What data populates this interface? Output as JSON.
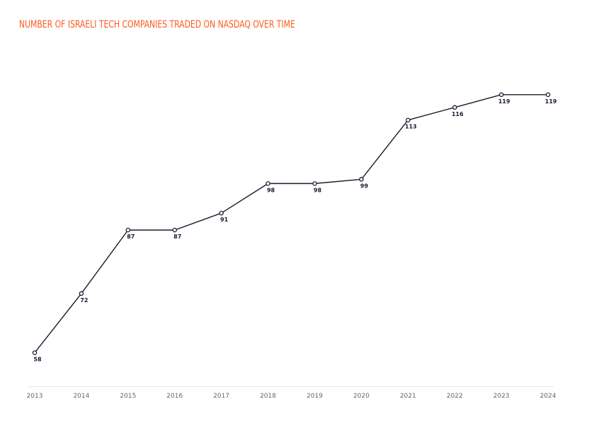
{
  "title": "NUMBER OF ISRAELI TECH COMPANIES TRADED ON NASDAQ OVER TIME",
  "colors": {
    "title": "#ff5a1f",
    "line": "#1a1a2e",
    "marker_fill": "#ffffff",
    "axis": "#e6e6e6",
    "tick_text": "#666666"
  },
  "chart_data": {
    "type": "line",
    "title": "NUMBER OF ISRAELI TECH COMPANIES TRADED ON NASDAQ OVER TIME",
    "xlabel": "",
    "ylabel": "",
    "x": [
      "2013",
      "2014",
      "2015",
      "2016",
      "2017",
      "2018",
      "2019",
      "2020",
      "2021",
      "2022",
      "2023",
      "2024"
    ],
    "values": [
      58,
      72,
      87,
      87,
      91,
      98,
      98,
      99,
      113,
      116,
      119,
      119
    ],
    "ylim": [
      50,
      126
    ],
    "grid": false,
    "data_labels": true
  }
}
